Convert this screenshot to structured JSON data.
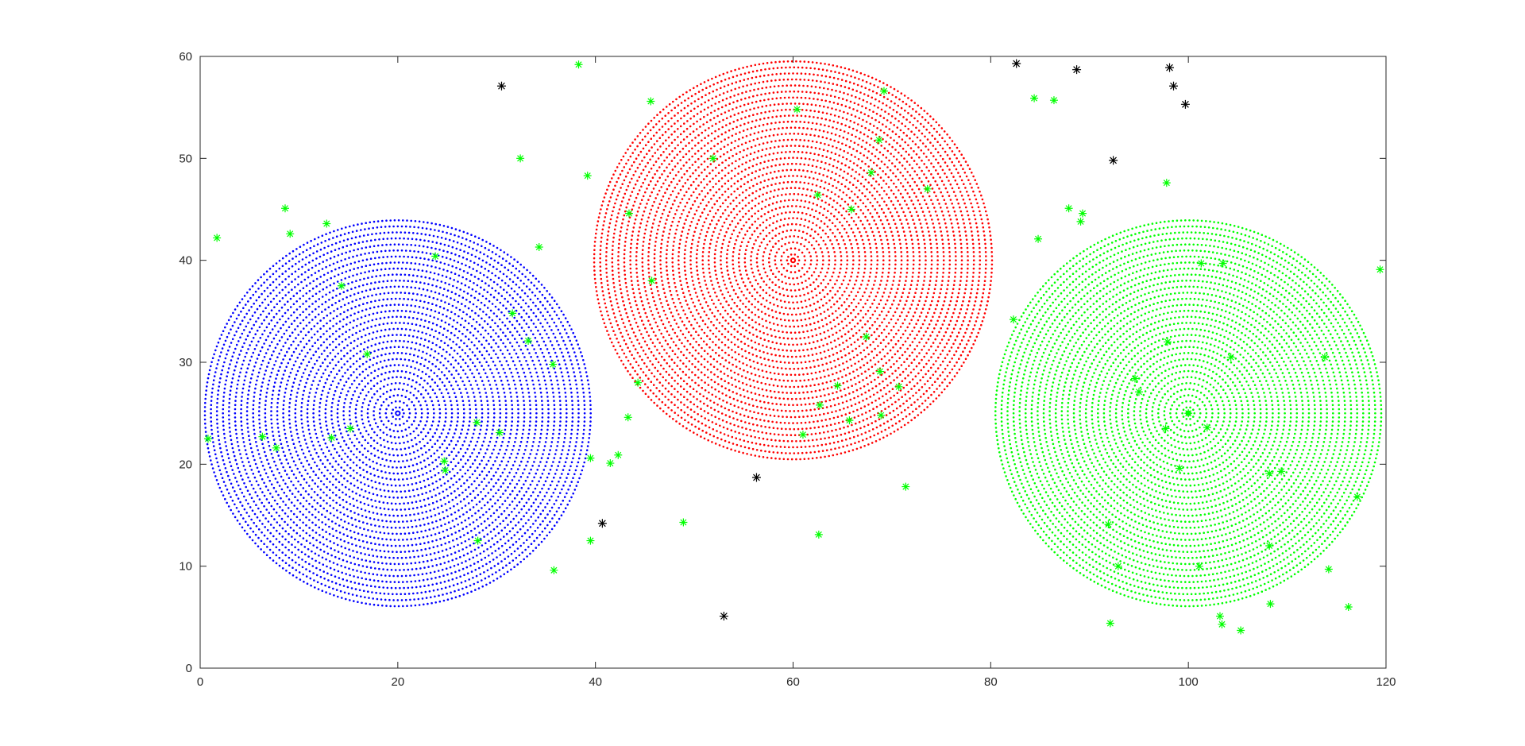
{
  "chart_data": {
    "type": "scatter",
    "title": "",
    "xlabel": "",
    "ylabel": "",
    "xlim": [
      0,
      120
    ],
    "ylim": [
      0,
      60
    ],
    "x_ticks": [
      "0",
      "20",
      "40",
      "60",
      "80",
      "100",
      "120"
    ],
    "y_ticks": [
      "0",
      "10",
      "20",
      "30",
      "40",
      "50",
      "60"
    ],
    "grid": false,
    "box": true,
    "coverage_regions": [
      {
        "color": "#0000ff",
        "center": [
          20,
          25
        ],
        "radius": 33
      },
      {
        "color": "#ff0000",
        "center": [
          60,
          40
        ],
        "radius": 34
      },
      {
        "color": "#00ff00",
        "center": [
          100,
          25
        ],
        "radius": 33
      }
    ],
    "covered_points": {
      "marker": "*",
      "color": "#00ff00",
      "points": [
        [
          1.7,
          42.2
        ],
        [
          8.6,
          45.1
        ],
        [
          9.1,
          42.6
        ],
        [
          12.8,
          43.6
        ],
        [
          14.3,
          37.5
        ],
        [
          16.9,
          30.8
        ],
        [
          0.8,
          22.5
        ],
        [
          6.3,
          22.7
        ],
        [
          7.7,
          21.6
        ],
        [
          13.3,
          22.6
        ],
        [
          15.2,
          23.5
        ],
        [
          24.7,
          20.3
        ],
        [
          24.8,
          19.4
        ],
        [
          28.0,
          24.1
        ],
        [
          28.1,
          12.5
        ],
        [
          30.3,
          23.1
        ],
        [
          23.8,
          40.4
        ],
        [
          31.6,
          34.8
        ],
        [
          32.4,
          50.0
        ],
        [
          33.2,
          32.1
        ],
        [
          34.3,
          41.3
        ],
        [
          35.7,
          29.8
        ],
        [
          35.8,
          9.6
        ],
        [
          38.3,
          59.2
        ],
        [
          39.2,
          48.3
        ],
        [
          39.5,
          20.6
        ],
        [
          39.5,
          12.5
        ],
        [
          41.5,
          20.1
        ],
        [
          42.3,
          20.9
        ],
        [
          43.3,
          24.6
        ],
        [
          43.4,
          44.6
        ],
        [
          44.3,
          28.0
        ],
        [
          45.6,
          55.6
        ],
        [
          45.7,
          38.0
        ],
        [
          48.9,
          14.3
        ],
        [
          51.9,
          50.0
        ],
        [
          60.4,
          54.8
        ],
        [
          61.0,
          22.9
        ],
        [
          62.5,
          46.4
        ],
        [
          62.6,
          13.1
        ],
        [
          62.7,
          25.8
        ],
        [
          64.5,
          27.7
        ],
        [
          65.7,
          24.3
        ],
        [
          65.9,
          45.0
        ],
        [
          67.4,
          32.5
        ],
        [
          67.9,
          48.6
        ],
        [
          68.7,
          51.8
        ],
        [
          68.8,
          29.1
        ],
        [
          68.9,
          24.8
        ],
        [
          69.2,
          56.6
        ],
        [
          70.7,
          27.6
        ],
        [
          71.4,
          17.8
        ],
        [
          73.6,
          47.0
        ],
        [
          82.3,
          34.2
        ],
        [
          84.4,
          55.9
        ],
        [
          84.8,
          42.1
        ],
        [
          86.4,
          55.7
        ],
        [
          87.9,
          45.1
        ],
        [
          89.1,
          43.8
        ],
        [
          89.3,
          44.6
        ],
        [
          91.9,
          14.1
        ],
        [
          92.1,
          4.4
        ],
        [
          92.9,
          10.0
        ],
        [
          94.6,
          28.4
        ],
        [
          95.0,
          27.1
        ],
        [
          97.7,
          23.5
        ],
        [
          97.8,
          47.6
        ],
        [
          97.9,
          32.0
        ],
        [
          99.1,
          19.6
        ],
        [
          101.1,
          10.0
        ],
        [
          101.3,
          39.7
        ],
        [
          101.9,
          23.6
        ],
        [
          103.2,
          5.1
        ],
        [
          103.4,
          4.3
        ],
        [
          103.5,
          39.7
        ],
        [
          104.3,
          30.5
        ],
        [
          105.3,
          3.7
        ],
        [
          108.2,
          12.0
        ],
        [
          108.2,
          19.1
        ],
        [
          108.3,
          6.3
        ],
        [
          109.4,
          19.3
        ],
        [
          113.8,
          30.5
        ],
        [
          114.2,
          9.7
        ],
        [
          116.2,
          6.0
        ],
        [
          117.1,
          16.8
        ],
        [
          119.4,
          39.1
        ],
        [
          100.0,
          25.0
        ]
      ]
    },
    "uncovered_points": {
      "marker": "*",
      "color": "#000000",
      "points": [
        [
          30.5,
          57.1
        ],
        [
          40.7,
          14.2
        ],
        [
          53.0,
          5.1
        ],
        [
          56.3,
          18.7
        ],
        [
          82.6,
          59.3
        ],
        [
          88.7,
          58.7
        ],
        [
          92.4,
          49.8
        ],
        [
          98.1,
          58.9
        ],
        [
          98.5,
          57.1
        ],
        [
          99.7,
          55.3
        ]
      ]
    }
  }
}
